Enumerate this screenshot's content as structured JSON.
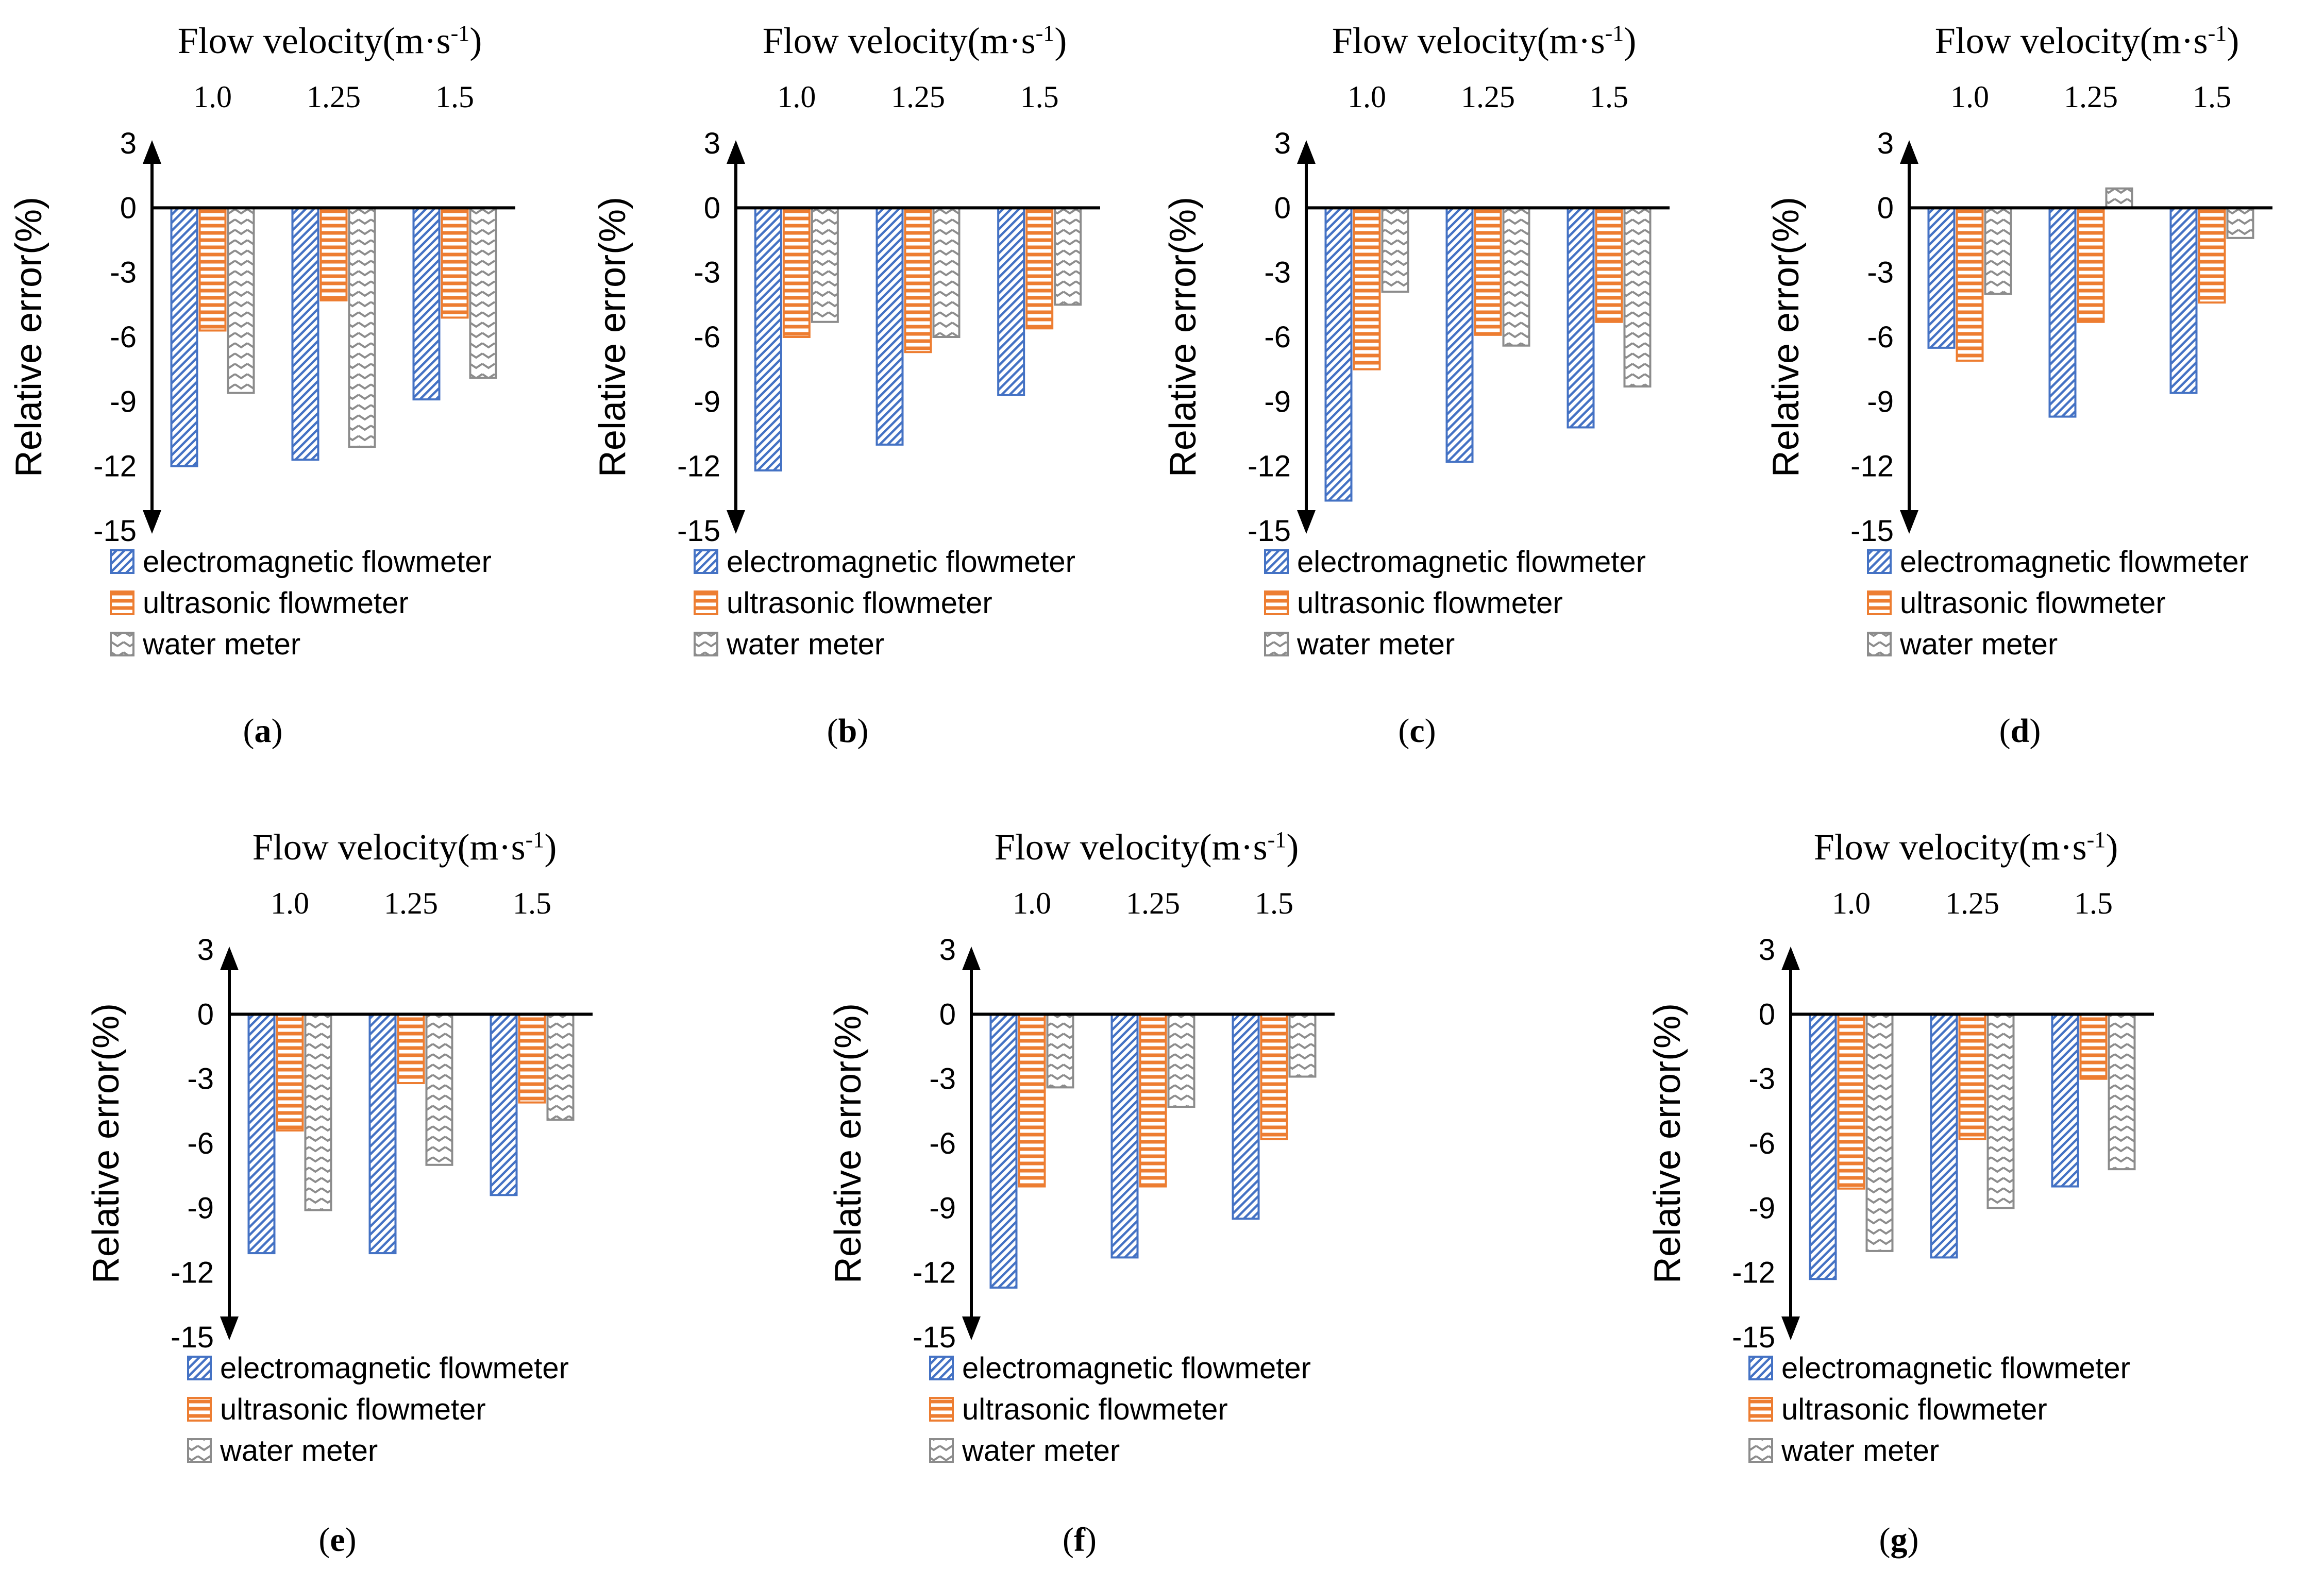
{
  "colors": {
    "electromagnetic": "#4472c4",
    "ultrasonic": "#ed7d31",
    "water": "#8c8c8c",
    "axis": "#000000",
    "background": "#ffffff"
  },
  "chart_data": [
    {
      "type": "bar",
      "panel": "a",
      "title": "Flow velocity(m·s",
      "title_superscript": "-1",
      "title_close": ")",
      "ylabel": "Relative error(%)",
      "categories": [
        "1.0",
        "1.25",
        "1.5"
      ],
      "yticks": [
        "3",
        "0",
        "-3",
        "-6",
        "-9",
        "-12",
        "-15"
      ],
      "ylim": [
        -15,
        3
      ],
      "series": [
        {
          "name": "electromagnetic flowmeter",
          "values": [
            -12.0,
            -11.7,
            -8.9
          ]
        },
        {
          "name": "ultrasonic flowmeter",
          "values": [
            -5.7,
            -4.3,
            -5.1
          ]
        },
        {
          "name": "water meter",
          "values": [
            -8.6,
            -11.1,
            -7.9
          ]
        }
      ]
    },
    {
      "type": "bar",
      "panel": "b",
      "title": "Flow velocity(m·s",
      "title_superscript": "-1",
      "title_close": ")",
      "ylabel": "Relative error(%)",
      "categories": [
        "1.0",
        "1.25",
        "1.5"
      ],
      "yticks": [
        "3",
        "0",
        "-3",
        "-6",
        "-9",
        "-12",
        "-15"
      ],
      "ylim": [
        -15,
        3
      ],
      "series": [
        {
          "name": "electromagnetic flowmeter",
          "values": [
            -12.2,
            -11.0,
            -8.7
          ]
        },
        {
          "name": "ultrasonic flowmeter",
          "values": [
            -6.0,
            -6.7,
            -5.6
          ]
        },
        {
          "name": "water meter",
          "values": [
            -5.3,
            -6.0,
            -4.5
          ]
        }
      ]
    },
    {
      "type": "bar",
      "panel": "c",
      "title": "Flow velocity(m·s",
      "title_superscript": "-1",
      "title_close": ")",
      "ylabel": "Relative error(%)",
      "categories": [
        "1.0",
        "1.25",
        "1.5"
      ],
      "yticks": [
        "3",
        "0",
        "-3",
        "-6",
        "-9",
        "-12",
        "-15"
      ],
      "ylim": [
        -15,
        3
      ],
      "series": [
        {
          "name": "electromagnetic flowmeter",
          "values": [
            -13.6,
            -11.8,
            -10.2
          ]
        },
        {
          "name": "ultrasonic flowmeter",
          "values": [
            -7.5,
            -5.9,
            -5.3
          ]
        },
        {
          "name": "water meter",
          "values": [
            -3.9,
            -6.4,
            -8.3
          ]
        }
      ]
    },
    {
      "type": "bar",
      "panel": "d",
      "title": "Flow velocity(m·s",
      "title_superscript": "-1",
      "title_close": ")",
      "ylabel": "Relative error(%)",
      "categories": [
        "1.0",
        "1.25",
        "1.5"
      ],
      "yticks": [
        "3",
        "0",
        "-3",
        "-6",
        "-9",
        "-12",
        "-15"
      ],
      "ylim": [
        -15,
        3
      ],
      "series": [
        {
          "name": "electromagnetic flowmeter",
          "values": [
            -6.5,
            -9.7,
            -8.6
          ]
        },
        {
          "name": "ultrasonic flowmeter",
          "values": [
            -7.1,
            -5.3,
            -4.4
          ]
        },
        {
          "name": "water meter",
          "values": [
            -4.0,
            0.9,
            -1.4
          ]
        }
      ]
    },
    {
      "type": "bar",
      "panel": "e",
      "title": "Flow velocity(m·s",
      "title_superscript": "-1",
      "title_close": ")",
      "ylabel": "Relative error(%)",
      "categories": [
        "1.0",
        "1.25",
        "1.5"
      ],
      "yticks": [
        "3",
        "0",
        "-3",
        "-6",
        "-9",
        "-12",
        "-15"
      ],
      "ylim": [
        -15,
        3
      ],
      "series": [
        {
          "name": "electromagnetic flowmeter",
          "values": [
            -11.1,
            -11.1,
            -8.4
          ]
        },
        {
          "name": "ultrasonic flowmeter",
          "values": [
            -5.4,
            -3.2,
            -4.1
          ]
        },
        {
          "name": "water meter",
          "values": [
            -9.1,
            -7.0,
            -4.9
          ]
        }
      ]
    },
    {
      "type": "bar",
      "panel": "f",
      "title": "Flow velocity(m·s",
      "title_superscript": "-1",
      "title_close": ")",
      "ylabel": "Relative error(%)",
      "categories": [
        "1.0",
        "1.25",
        "1.5"
      ],
      "yticks": [
        "3",
        "0",
        "-3",
        "-6",
        "-9",
        "-12",
        "-15"
      ],
      "ylim": [
        -15,
        3
      ],
      "series": [
        {
          "name": "electromagnetic flowmeter",
          "values": [
            -12.7,
            -11.3,
            -9.5
          ]
        },
        {
          "name": "ultrasonic flowmeter",
          "values": [
            -8.0,
            -8.0,
            -5.8
          ]
        },
        {
          "name": "water meter",
          "values": [
            -3.4,
            -4.3,
            -2.9
          ]
        }
      ]
    },
    {
      "type": "bar",
      "panel": "g",
      "title": "Flow velocity(m·s",
      "title_superscript": "-1",
      "title_close": ")",
      "ylabel": "Relative error(%)",
      "categories": [
        "1.0",
        "1.25",
        "1.5"
      ],
      "yticks": [
        "3",
        "0",
        "-3",
        "-6",
        "-9",
        "-12",
        "-15"
      ],
      "ylim": [
        -15,
        3
      ],
      "series": [
        {
          "name": "electromagnetic flowmeter",
          "values": [
            -12.3,
            -11.3,
            -8.0
          ]
        },
        {
          "name": "ultrasonic flowmeter",
          "values": [
            -8.1,
            -5.8,
            -3.0
          ]
        },
        {
          "name": "water meter",
          "values": [
            -11.0,
            -9.0,
            -7.2
          ]
        }
      ]
    }
  ],
  "panel_labels": [
    "(a)",
    "(b)",
    "(c)",
    "(d)",
    "(e)",
    "(f)",
    "(g)"
  ]
}
